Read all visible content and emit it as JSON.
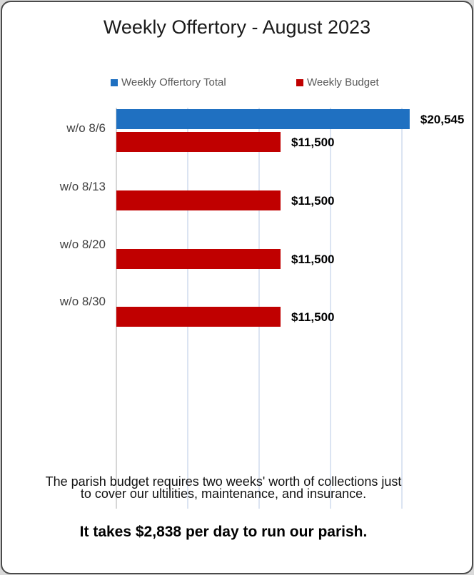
{
  "chart_data": {
    "type": "bar",
    "orientation": "horizontal",
    "title": "Weekly Offertory - August 2023",
    "categories": [
      "w/o 8/6",
      "w/o 8/13",
      "w/o 8/20",
      "w/o 8/30"
    ],
    "series": [
      {
        "name": "Weekly Offertory Total",
        "color": "#1f70c1",
        "values": [
          20545,
          null,
          null,
          null
        ],
        "labels": [
          "$20,545",
          "",
          "",
          ""
        ]
      },
      {
        "name": "Weekly Budget",
        "color": "#c00000",
        "values": [
          11500,
          11500,
          11500,
          11500
        ],
        "labels": [
          "$11,500",
          "$11,500",
          "$11,500",
          "$11,500"
        ]
      }
    ],
    "xlim": [
      0,
      20000
    ],
    "grid": true,
    "legend_position": "top"
  },
  "notes": {
    "requirement": "The parish budget requires two weeks' worth of collections just to cover our ultilities, maintenance, and insurance.",
    "daily_cost": "It takes $2,838 per day to run our parish."
  }
}
